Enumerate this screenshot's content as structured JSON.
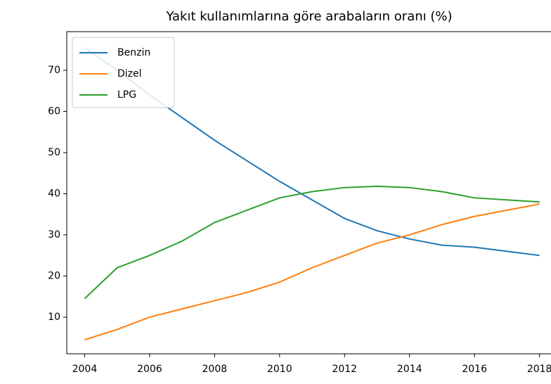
{
  "chart_data": {
    "type": "line",
    "title": "Yakıt kullanımlarına göre arabaların oranı (%)",
    "x": [
      2004,
      2005,
      2006,
      2007,
      2008,
      2009,
      2010,
      2011,
      2012,
      2013,
      2014,
      2015,
      2016,
      2017,
      2018
    ],
    "series": [
      {
        "name": "Benzin",
        "color": "#1f77b4",
        "values": [
          75.5,
          70,
          64,
          58.5,
          53,
          48,
          43,
          38.5,
          34,
          31,
          29,
          27.5,
          27,
          26,
          25
        ]
      },
      {
        "name": "Dizel",
        "color": "#ff7f0e",
        "values": [
          4.5,
          7,
          10,
          12,
          14,
          16,
          18.5,
          22,
          25,
          28,
          30,
          32.5,
          34.5,
          36,
          37.5
        ]
      },
      {
        "name": "LPG",
        "color": "#2ca02c",
        "values": [
          14.5,
          22,
          25,
          28.5,
          33,
          36,
          39,
          40.5,
          41.5,
          41.8,
          41.5,
          40.5,
          39,
          38.5,
          38
        ]
      }
    ],
    "xlim": [
      2003.45,
      2018.7
    ],
    "xticks": [
      2004,
      2006,
      2008,
      2010,
      2012,
      2014,
      2016,
      2018
    ],
    "ylim": [
      1.1,
      79.4
    ],
    "yticks": [
      10,
      20,
      30,
      40,
      50,
      60,
      70
    ],
    "legend": "upper left"
  }
}
